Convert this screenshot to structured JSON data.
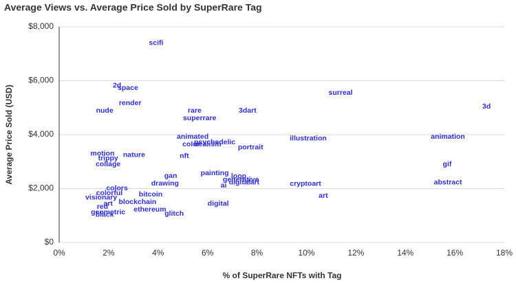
{
  "chart_data": {
    "type": "scatter",
    "title": "Average Views vs. Average Price Sold by SuperRare Tag",
    "x_label": "% of SuperRare NFTs with Tag",
    "y_label": "Average Price Sold (USD)",
    "color": "#2e2ed6",
    "grid": true,
    "categories": [
      "scifi",
      "2d",
      "space",
      "render",
      "nude",
      "rare",
      "3dart",
      "superrare",
      "surreal",
      "3d",
      "animated",
      "illustration",
      "animation",
      "psychedelic",
      "color",
      "realism",
      "portrait",
      "motion",
      "nature",
      "nft",
      "trippy",
      "collage",
      "gif",
      "gan",
      "painting",
      "loop",
      "generative",
      "drawing",
      "digitalart",
      "ai",
      "cryptoart",
      "abstract",
      "colors",
      "colorful",
      "visionary",
      "art",
      "red",
      "geometric",
      "black",
      "bitcoin",
      "blockchain",
      "ethereum",
      "glitch",
      "digital",
      "art"
    ],
    "x": [
      3.92,
      2.34,
      2.78,
      2.87,
      1.84,
      5.48,
      7.62,
      5.68,
      11.38,
      17.28,
      5.4,
      10.07,
      15.72,
      6.29,
      5.34,
      6.04,
      7.74,
      1.75,
      3.03,
      5.06,
      1.98,
      1.98,
      15.69,
      4.51,
      6.29,
      7.26,
      7.35,
      4.28,
      7.48,
      6.65,
      9.96,
      15.72,
      2.34,
      2.03,
      1.7,
      1.98,
      1.75,
      1.98,
      1.84,
      3.7,
      3.17,
      3.67,
      4.65,
      6.43,
      10.68
    ],
    "values": [
      7390,
      5810,
      5730,
      5170,
      4890,
      4890,
      4890,
      4610,
      5550,
      5040,
      3920,
      3850,
      3920,
      3720,
      3640,
      3640,
      3520,
      3290,
      3240,
      3210,
      3110,
      2900,
      2900,
      2470,
      2570,
      2450,
      2320,
      2190,
      2220,
      2110,
      2170,
      2220,
      2010,
      1830,
      1660,
      1430,
      1320,
      1120,
      1020,
      1780,
      1500,
      1220,
      1070,
      1430,
      1730
    ],
    "xlim": [
      0,
      18
    ],
    "xticks": [
      {
        "value": 0,
        "label": "0%"
      },
      {
        "value": 2,
        "label": "2%"
      },
      {
        "value": 4,
        "label": "4%"
      },
      {
        "value": 6,
        "label": "6%"
      },
      {
        "value": 8,
        "label": "8%"
      },
      {
        "value": 10,
        "label": "10%"
      },
      {
        "value": 12,
        "label": "12%"
      },
      {
        "value": 14,
        "label": "14%"
      },
      {
        "value": 16,
        "label": "16%"
      },
      {
        "value": 18,
        "label": "18%"
      }
    ],
    "ylim": [
      0,
      8000
    ],
    "yticks": [
      {
        "value": 0,
        "label": "$0"
      },
      {
        "value": 2000,
        "label": "$2,000"
      },
      {
        "value": 4000,
        "label": "$4,000"
      },
      {
        "value": 6000,
        "label": "$6,000"
      },
      {
        "value": 8000,
        "label": "$8,000"
      }
    ]
  }
}
